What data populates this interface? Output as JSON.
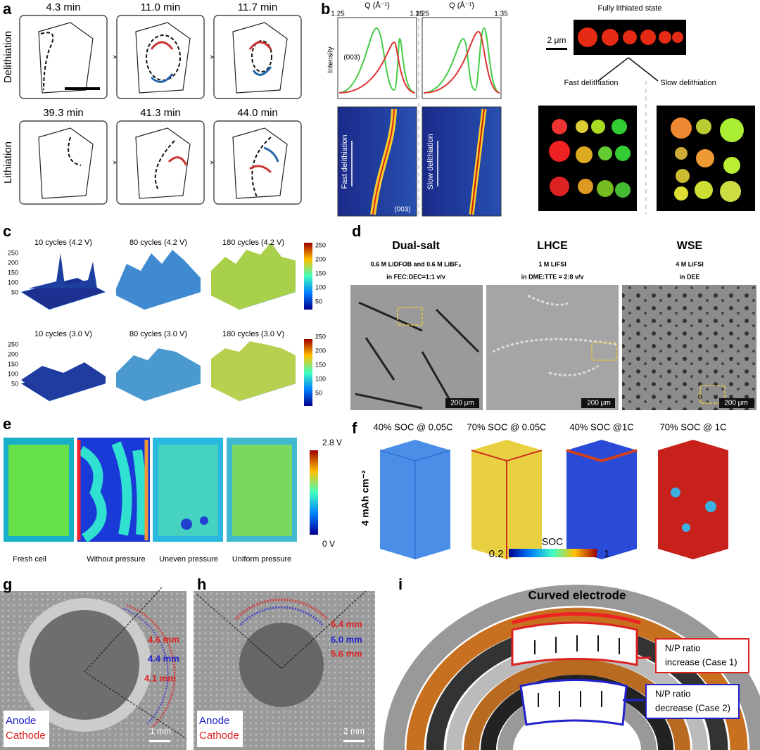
{
  "panel_a": {
    "label": "a",
    "row_labels": [
      "Delithiation",
      "Lithiation"
    ],
    "times": [
      "4.3 min",
      "11.0 min",
      "11.7 min",
      "39.3 min",
      "41.3 min",
      "44.0 min"
    ]
  },
  "panel_b": {
    "label": "b",
    "axis_title": "Q (Å⁻¹)",
    "axis_ticks": [
      "1.25",
      "1.35"
    ],
    "y_label": "Intensity",
    "peak_label": "(003)",
    "plots": [
      "Fast delithiation",
      "Slow delithiation"
    ],
    "state": "Fully lithiated state",
    "scale_bar": "2 μm",
    "branches": [
      "Fast delithiation",
      "Slow delithiation"
    ]
  },
  "panel_c": {
    "label": "c",
    "titles": [
      "10 cycles (4.2 V)",
      "80 cycles (4.2 V)",
      "180 cycles (4.2 V)",
      "10 cycles (3.0 V)",
      "80 cycles (3.0 V)",
      "180 cycles (3.0 V)"
    ],
    "ticks": [
      "250",
      "200",
      "150",
      "100",
      "50"
    ]
  },
  "panel_d": {
    "label": "d",
    "electrolytes": [
      {
        "name": "Dual-salt",
        "salt": "0.6 M LiDFOB and 0.6 M LiBF₄",
        "solvent": "in FEC:DEC=1:1  v/v"
      },
      {
        "name": "LHCE",
        "salt": "1 M LiFSI",
        "solvent": "in DME:TTE  = 2:8 v/v"
      },
      {
        "name": "WSE",
        "salt": "4 M LiFSI",
        "solvent": "in DEE"
      }
    ],
    "scale_bar": "200 μm"
  },
  "panel_e": {
    "label": "e",
    "colorbar_max": "2.8 V",
    "colorbar_min": "0 V",
    "captions": [
      "Fresh cell",
      "Without pressure",
      "Uneven pressure",
      "Uniform pressure"
    ]
  },
  "panel_f": {
    "label": "f",
    "titles": [
      "40% SOC @ 0.05C",
      "70% SOC @ 0.05C",
      "40% SOC @1C",
      "70% SOC @ 1C"
    ],
    "loading": "4 mAh cm⁻²",
    "colorbar_title": "SOC",
    "colorbar_min": "0.2",
    "colorbar_max": "1"
  },
  "panel_g": {
    "label": "g",
    "radii": [
      "4.6 mm",
      "4.4 mm",
      "4.1 mm"
    ],
    "legend": [
      "Anode",
      "Cathode"
    ],
    "scale_bar": "1 mm"
  },
  "panel_h": {
    "label": "h",
    "radii": [
      "6.4 mm",
      "6.0 mm",
      "5.6 mm"
    ],
    "legend": [
      "Anode",
      "Cathode"
    ],
    "scale_bar": "2 mm"
  },
  "panel_i": {
    "label": "i",
    "title": "Curved electrode",
    "cases": [
      [
        "N/P ratio",
        "increase (Case 1)"
      ],
      [
        "N/P ratio",
        "decrease (Case 2)"
      ]
    ]
  }
}
